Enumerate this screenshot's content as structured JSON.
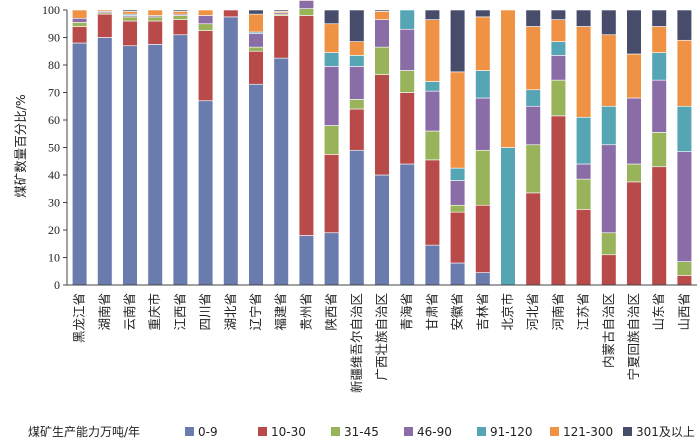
{
  "chart_data": {
    "type": "bar",
    "stacked": true,
    "ylabel": "煤矿数量百分比/%",
    "ylim": [
      0,
      100
    ],
    "yticks": [
      "0",
      "10",
      "20",
      "30",
      "40",
      "50",
      "60",
      "70",
      "80",
      "90",
      "100"
    ],
    "grid": false,
    "legend_title": "煤矿生产能力万吨/年",
    "legend_position": "bottom",
    "categories": [
      "黑龙江省",
      "湖南省",
      "云南省",
      "重庆市",
      "江西省",
      "四川省",
      "湖北省",
      "辽宁省",
      "福建省",
      "贵州省",
      "陕西省",
      "新疆维吾尔自治区",
      "广西壮族自治区",
      "青海省",
      "甘肃省",
      "安徽省",
      "吉林省",
      "北京市",
      "河北省",
      "河南省",
      "江苏省",
      "内蒙古自治区",
      "宁夏回族自治区",
      "山东省",
      "山西省"
    ],
    "series": [
      {
        "name": "0-9",
        "color": "#6a7cae",
        "values": [
          88,
          90,
          87,
          87.5,
          91,
          67,
          97.5,
          73,
          82.5,
          18,
          19,
          49,
          40,
          44,
          14.5,
          8,
          4.5,
          0,
          0,
          0,
          0,
          0,
          0,
          0,
          0
        ]
      },
      {
        "name": "10-30",
        "color": "#b84a4a",
        "values": [
          6,
          8.5,
          9,
          8.5,
          5.5,
          25.5,
          2.5,
          12,
          15.5,
          80,
          28.5,
          15,
          36.5,
          26,
          31,
          18.5,
          24.5,
          0,
          33.5,
          61.5,
          27.5,
          11,
          37.5,
          43,
          3.5
        ]
      },
      {
        "name": "31-45",
        "color": "#99b35b",
        "values": [
          1.5,
          0.5,
          1.5,
          1.5,
          1.5,
          2.5,
          0,
          1.5,
          0.5,
          2.5,
          10.5,
          3.5,
          10,
          8,
          10.5,
          2.5,
          20,
          0,
          17.5,
          13,
          11,
          8,
          6.5,
          12.5,
          5
        ]
      },
      {
        "name": "46-90",
        "color": "#8a6ca7",
        "values": [
          1.5,
          0.5,
          0.5,
          0.5,
          0.5,
          3,
          0,
          5,
          0.5,
          3,
          21.5,
          12,
          10,
          15,
          14.5,
          9,
          19,
          0,
          14,
          9,
          5.5,
          32,
          24,
          19,
          40
        ]
      },
      {
        "name": "91-120",
        "color": "#56a5b4",
        "values": [
          0,
          0,
          0.5,
          0,
          0,
          0,
          0,
          0.5,
          0,
          0,
          5,
          4,
          0,
          7,
          3.5,
          4.5,
          10,
          50,
          6,
          5,
          17,
          14,
          0,
          10,
          16.5
        ]
      },
      {
        "name": "121-300",
        "color": "#ef9244",
        "values": [
          3,
          0.5,
          1,
          2,
          1,
          2,
          0,
          6.5,
          0.5,
          1.5,
          10.5,
          5,
          3,
          0,
          22.5,
          35,
          19.5,
          50,
          23,
          8,
          33,
          26,
          16,
          9.5,
          24
        ]
      },
      {
        "name": "301及以上",
        "color": "#474c6b",
        "values": [
          0,
          0,
          0.5,
          0,
          0.5,
          0,
          0,
          1.5,
          0.5,
          0,
          5,
          11.5,
          0.5,
          0,
          3.5,
          22.5,
          2.5,
          0,
          6,
          3.5,
          6,
          9,
          16,
          6,
          11
        ]
      }
    ]
  }
}
